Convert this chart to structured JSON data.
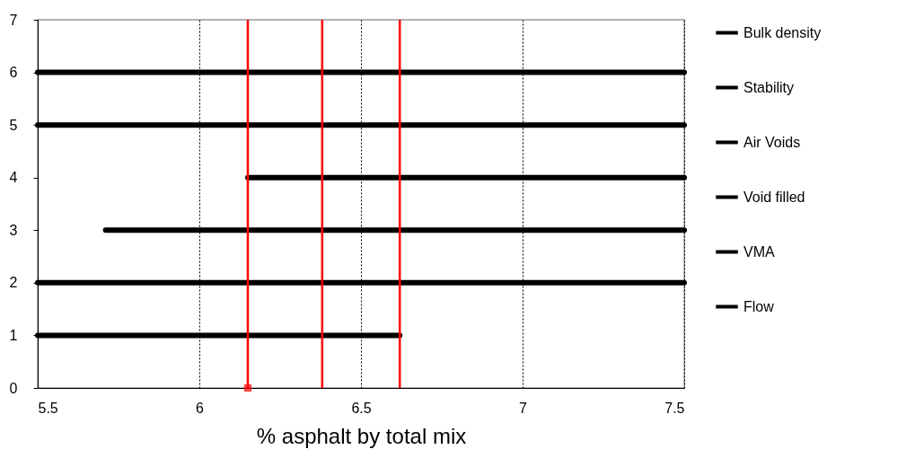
{
  "chart_data": {
    "type": "line",
    "xlabel": "% asphalt by total mix",
    "xlim": [
      5.5,
      7.5
    ],
    "xticks": [
      5.5,
      6,
      6.5,
      7,
      7.5
    ],
    "ylim": [
      0,
      7
    ],
    "yticks": [
      0,
      1,
      2,
      3,
      4,
      5,
      6,
      7
    ],
    "grid": "x",
    "legend": "right",
    "line_style": "solid",
    "series": [
      {
        "name": "Bulk density",
        "color": "#000000",
        "x": [
          5.5,
          7.5
        ],
        "values": [
          6,
          6
        ]
      },
      {
        "name": "Stability",
        "color": "#000000",
        "x": [
          5.5,
          7.5
        ],
        "values": [
          5,
          5
        ]
      },
      {
        "name": "Air Voids",
        "color": "#000000",
        "x": [
          6.15,
          7.5
        ],
        "values": [
          4,
          4
        ]
      },
      {
        "name": "Void filled",
        "color": "#000000",
        "x": [
          5.71,
          7.5
        ],
        "values": [
          3,
          3
        ]
      },
      {
        "name": "VMA",
        "color": "#000000",
        "x": [
          5.5,
          7.5
        ],
        "values": [
          2,
          2
        ]
      },
      {
        "name": "Flow",
        "color": "#000000",
        "x": [
          5.5,
          6.62
        ],
        "values": [
          1,
          1
        ]
      },
      {
        "type": "scatter",
        "color": "#ff0000",
        "marker": "square",
        "x": [
          6.15
        ],
        "values": [
          0
        ]
      }
    ],
    "ref_lines": [
      {
        "axis": "x",
        "value": 6.15,
        "color": "#ff0000"
      },
      {
        "axis": "x",
        "value": 6.38,
        "color": "#ff0000"
      },
      {
        "axis": "x",
        "value": 6.62,
        "color": "#ff0000"
      }
    ]
  }
}
